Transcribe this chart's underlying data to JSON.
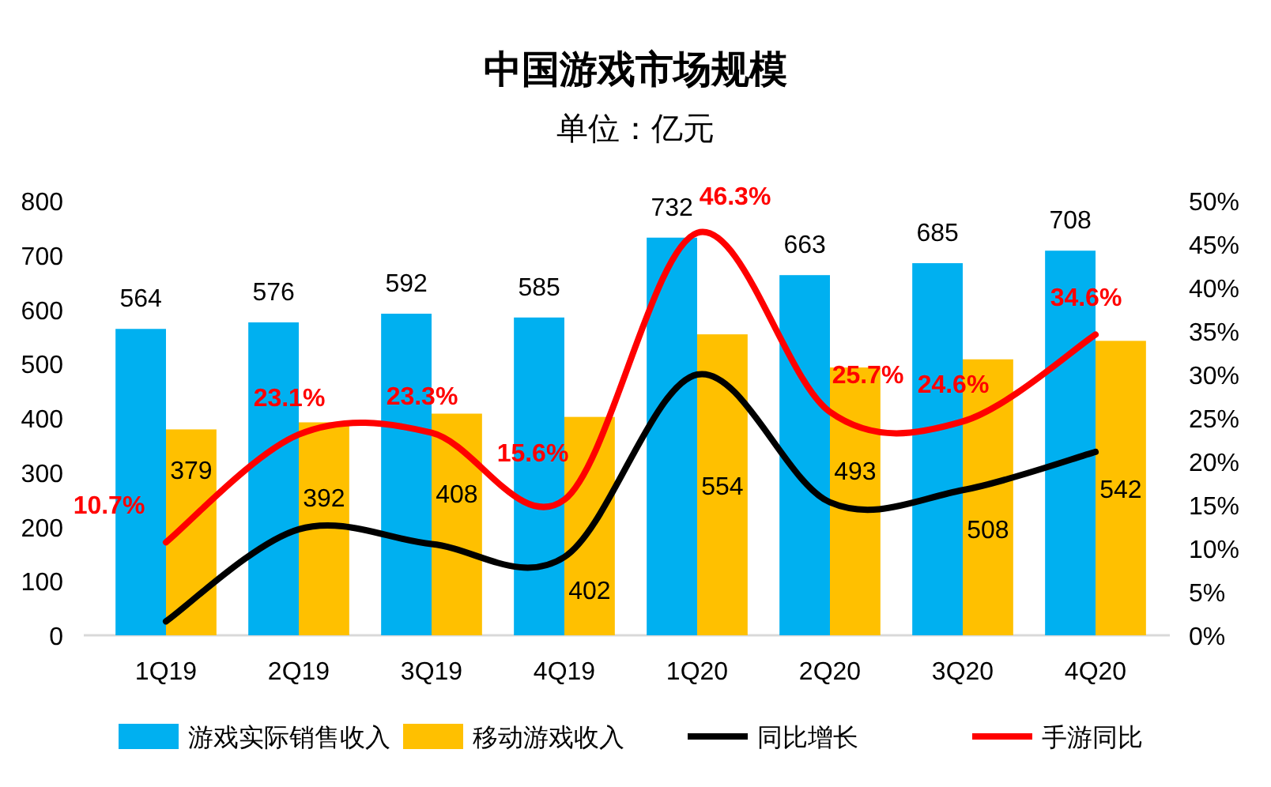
{
  "chart_data": {
    "type": "bar",
    "title": "中国游戏市场规模",
    "subtitle": "单位：亿元",
    "categories": [
      "1Q19",
      "2Q19",
      "3Q19",
      "4Q19",
      "1Q20",
      "2Q20",
      "3Q20",
      "4Q20"
    ],
    "series": [
      {
        "name": "游戏实际销售收入",
        "color": "#00b0f0",
        "values": [
          564,
          576,
          592,
          585,
          732,
          663,
          685,
          708
        ],
        "value_labels": [
          "564",
          "576",
          "592",
          "585",
          "732",
          "663",
          "685",
          "708"
        ]
      },
      {
        "name": "移动游戏收入",
        "color": "#ffc000",
        "values": [
          379,
          392,
          408,
          402,
          554,
          493,
          508,
          542
        ],
        "value_labels": [
          "379",
          "392",
          "408",
          "402",
          "554",
          "493",
          "508",
          "542"
        ]
      },
      {
        "name": "同比增长",
        "type": "line",
        "axis": "y2",
        "color": "#000000",
        "values": [
          1.6,
          12.2,
          10.5,
          9,
          30,
          15.3,
          16.7,
          21.1
        ]
      },
      {
        "name": "手游同比",
        "type": "line",
        "axis": "y2",
        "color": "#ff0000",
        "values": [
          10.7,
          23.1,
          23.3,
          15.6,
          46.3,
          25.7,
          24.6,
          34.6
        ],
        "value_labels": [
          "10.7%",
          "23.1%",
          "23.3%",
          "15.6%",
          "46.3%",
          "25.7%",
          "24.6%",
          "34.6%"
        ]
      }
    ],
    "ylim": [
      0,
      800
    ],
    "yticks": [
      0,
      100,
      200,
      300,
      400,
      500,
      600,
      700,
      800
    ],
    "y2lim": [
      0,
      50
    ],
    "y2ticks": [
      {
        "value": 0,
        "label": "0%"
      },
      {
        "value": 5,
        "label": "5%"
      },
      {
        "value": 10,
        "label": "10%"
      },
      {
        "value": 15,
        "label": "15%"
      },
      {
        "value": 20,
        "label": "20%"
      },
      {
        "value": 25,
        "label": "25%"
      },
      {
        "value": 30,
        "label": "30%"
      },
      {
        "value": 35,
        "label": "35%"
      },
      {
        "value": 40,
        "label": "40%"
      },
      {
        "value": 45,
        "label": "45%"
      },
      {
        "value": 50,
        "label": "50%"
      }
    ],
    "grid": false,
    "legend": "bottom"
  }
}
